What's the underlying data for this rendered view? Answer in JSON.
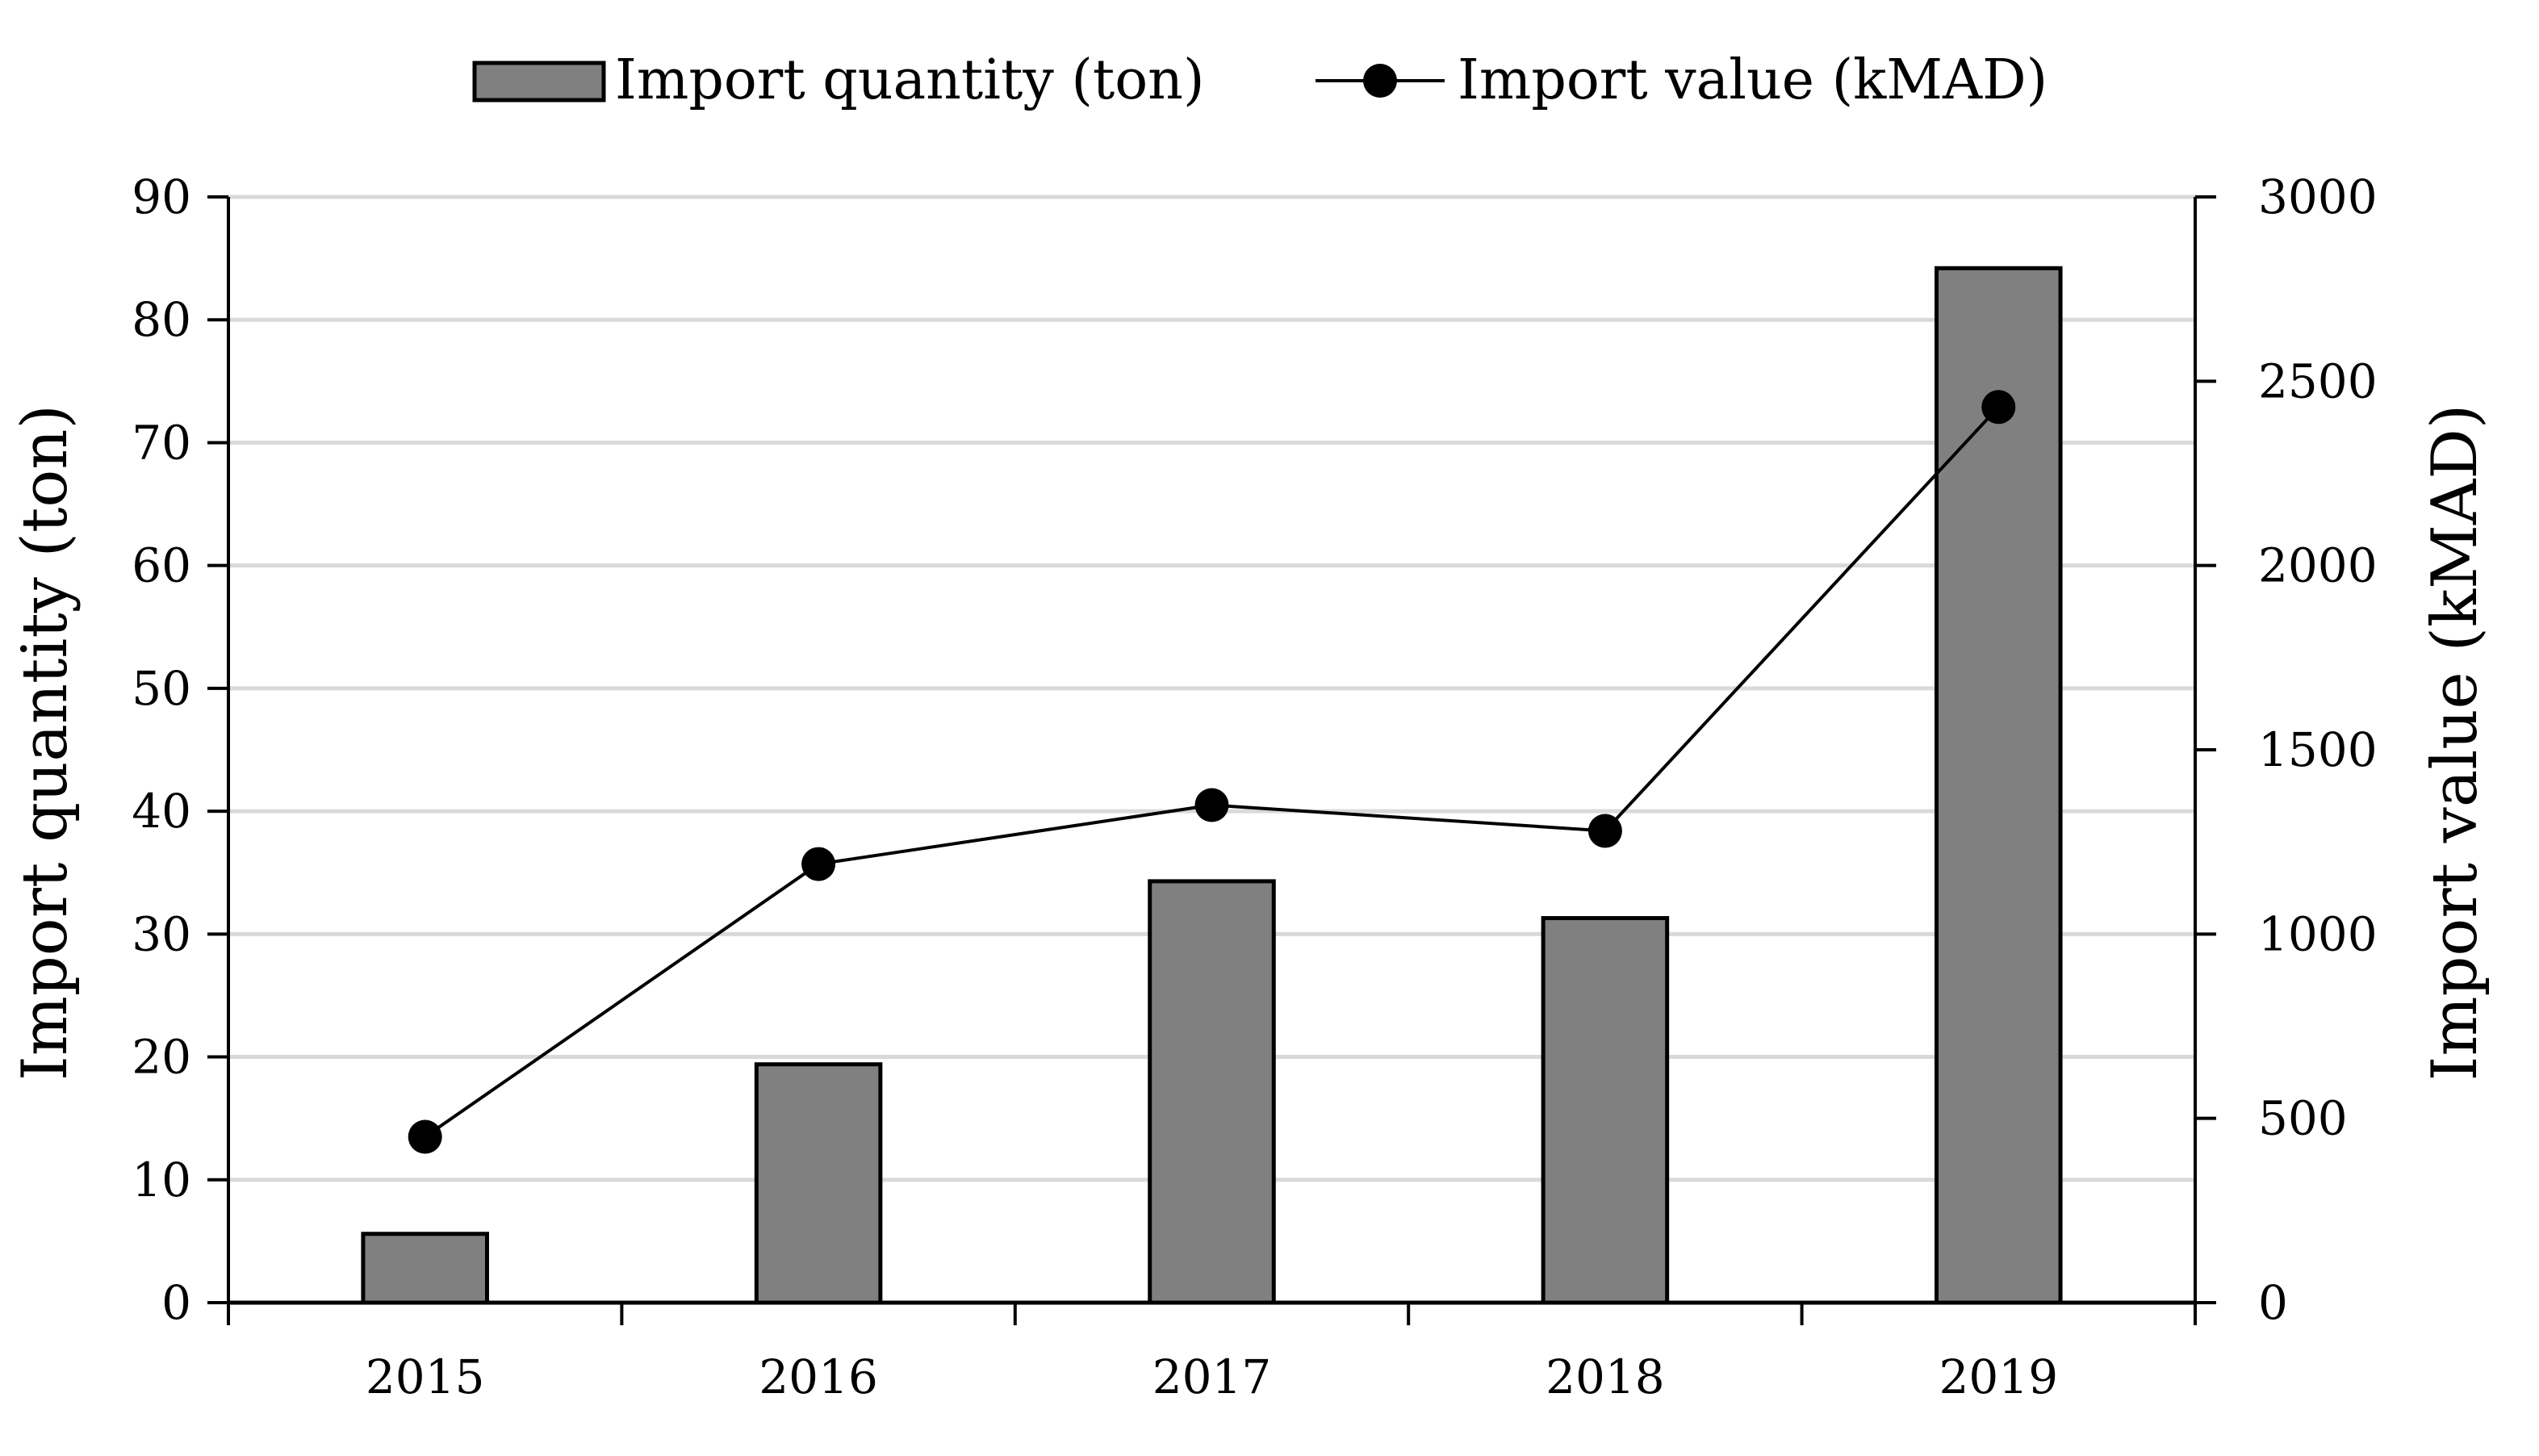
{
  "chart_data": {
    "type": "bar+line",
    "categories": [
      "2015",
      "2016",
      "2017",
      "2018",
      "2019"
    ],
    "series": [
      {
        "name": "Import quantity (ton)",
        "type": "bar",
        "axis": "left",
        "values": [
          5.6,
          19.4,
          34.3,
          31.3,
          84.2
        ]
      },
      {
        "name": "Import value (kMAD)",
        "type": "line",
        "axis": "right",
        "values": [
          450,
          1190,
          1350,
          1280,
          2430
        ]
      }
    ],
    "ylabel": "Import quantity (ton)",
    "y2label": "Import value (kMAD)",
    "ylim": [
      0,
      90
    ],
    "y2lim": [
      0,
      3000
    ],
    "yticks": [
      "0",
      "10",
      "20",
      "30",
      "40",
      "50",
      "60",
      "70",
      "80",
      "90"
    ],
    "y2ticks": [
      "0",
      "500",
      "1000",
      "1500",
      "2000",
      "2500",
      "3000"
    ],
    "grid": true,
    "legend_position": "top-center",
    "colors": {
      "bar_fill": "#808080",
      "bar_stroke": "#000000",
      "line": "#000000",
      "grid": "#d9d9d9"
    }
  }
}
